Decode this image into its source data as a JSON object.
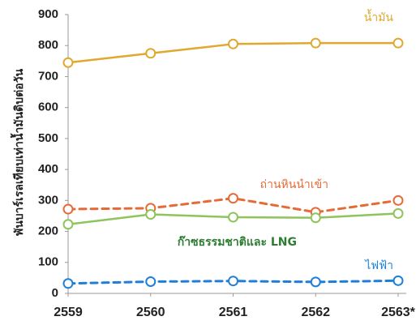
{
  "chart_data": {
    "type": "line",
    "categories": [
      "2559",
      "2560",
      "2561",
      "2562",
      "2563*"
    ],
    "ylabel": "พันบาร์เรลเทียบเท่าน้ำมันดิบต่อวัน",
    "ylim": [
      0,
      900
    ],
    "yticks": [
      "0",
      "100",
      "200",
      "300",
      "400",
      "500",
      "600",
      "700",
      "800",
      "900"
    ],
    "grid": false,
    "series": [
      {
        "name": "น้ำมัน",
        "values": [
          745,
          775,
          805,
          808,
          808
        ],
        "color": "#E0A82E",
        "dashed": false
      },
      {
        "name": "ถ่านหินนำเข้า",
        "values": [
          272,
          275,
          307,
          262,
          300
        ],
        "color": "#E66A35",
        "dashed": true
      },
      {
        "name": "ก๊าซธรรมชาติและ LNG",
        "values": [
          223,
          255,
          246,
          244,
          258
        ],
        "color": "#8DC45B",
        "dashed": false
      },
      {
        "name": "ไฟฟ้า",
        "values": [
          32,
          38,
          40,
          37,
          41
        ],
        "color": "#1F7FD8",
        "dashed": true
      }
    ]
  }
}
